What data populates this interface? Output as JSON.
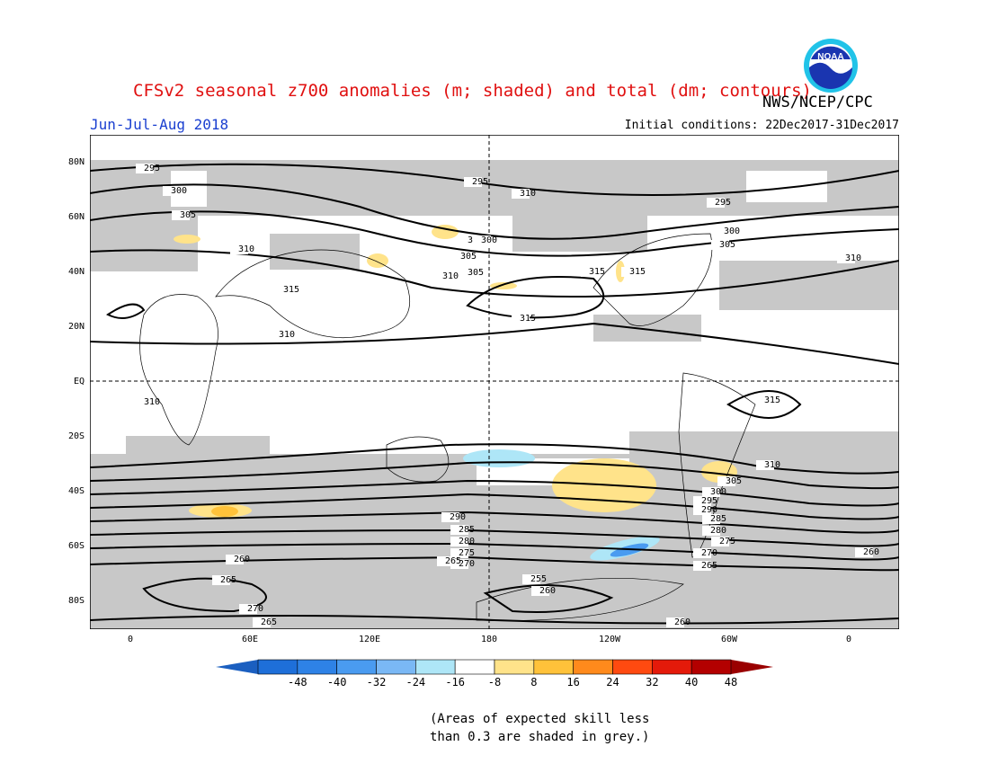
{
  "header": {
    "title": "CFSv2 seasonal z700 anomalies (m; shaded) and total (dm; contours)",
    "agency": "NWS/NCEP/CPC",
    "period": "Jun-Jul-Aug 2018",
    "initial_conditions": "Initial conditions: 22Dec2017-31Dec2017",
    "logo_text": "NOAA"
  },
  "axes": {
    "lat_labels": [
      "80N",
      "60N",
      "40N",
      "20N",
      "EQ",
      "20S",
      "40S",
      "60S",
      "80S"
    ],
    "lon_labels": [
      "0",
      "60E",
      "120E",
      "180",
      "120W",
      "60W",
      "0"
    ]
  },
  "colorbar": {
    "ticks": [
      "-48",
      "-40",
      "-32",
      "-24",
      "-16",
      "-8",
      "8",
      "16",
      "24",
      "32",
      "40",
      "48"
    ],
    "colors": [
      "#1e6fd9",
      "#2e82e6",
      "#4a9bf0",
      "#7ab8f5",
      "#aee6f7",
      "#ffffff",
      "#ffe38a",
      "#ffc23a",
      "#ff8a1c",
      "#ff4a10",
      "#e41a0a",
      "#b30000"
    ],
    "low_arrow_color": "#1b5fc0",
    "high_arrow_color": "#9a0000"
  },
  "footnote": {
    "line1": "(Areas of expected skill less",
    "line2": "than 0.3 are shaded in grey.)"
  },
  "contour_labels": [
    "295",
    "300",
    "305",
    "310",
    "315",
    "310",
    "295",
    "300",
    "305",
    "310",
    "305",
    "300",
    "310",
    "315",
    "315",
    "310",
    "315",
    "310",
    "305",
    "300",
    "295",
    "290",
    "285",
    "280",
    "275",
    "270",
    "265",
    "260",
    "255",
    "260",
    "265",
    "270",
    "275",
    "280",
    "285",
    "290",
    "295",
    "300",
    "305",
    "310",
    "315",
    "260",
    "265",
    "270",
    "265",
    "260"
  ]
}
